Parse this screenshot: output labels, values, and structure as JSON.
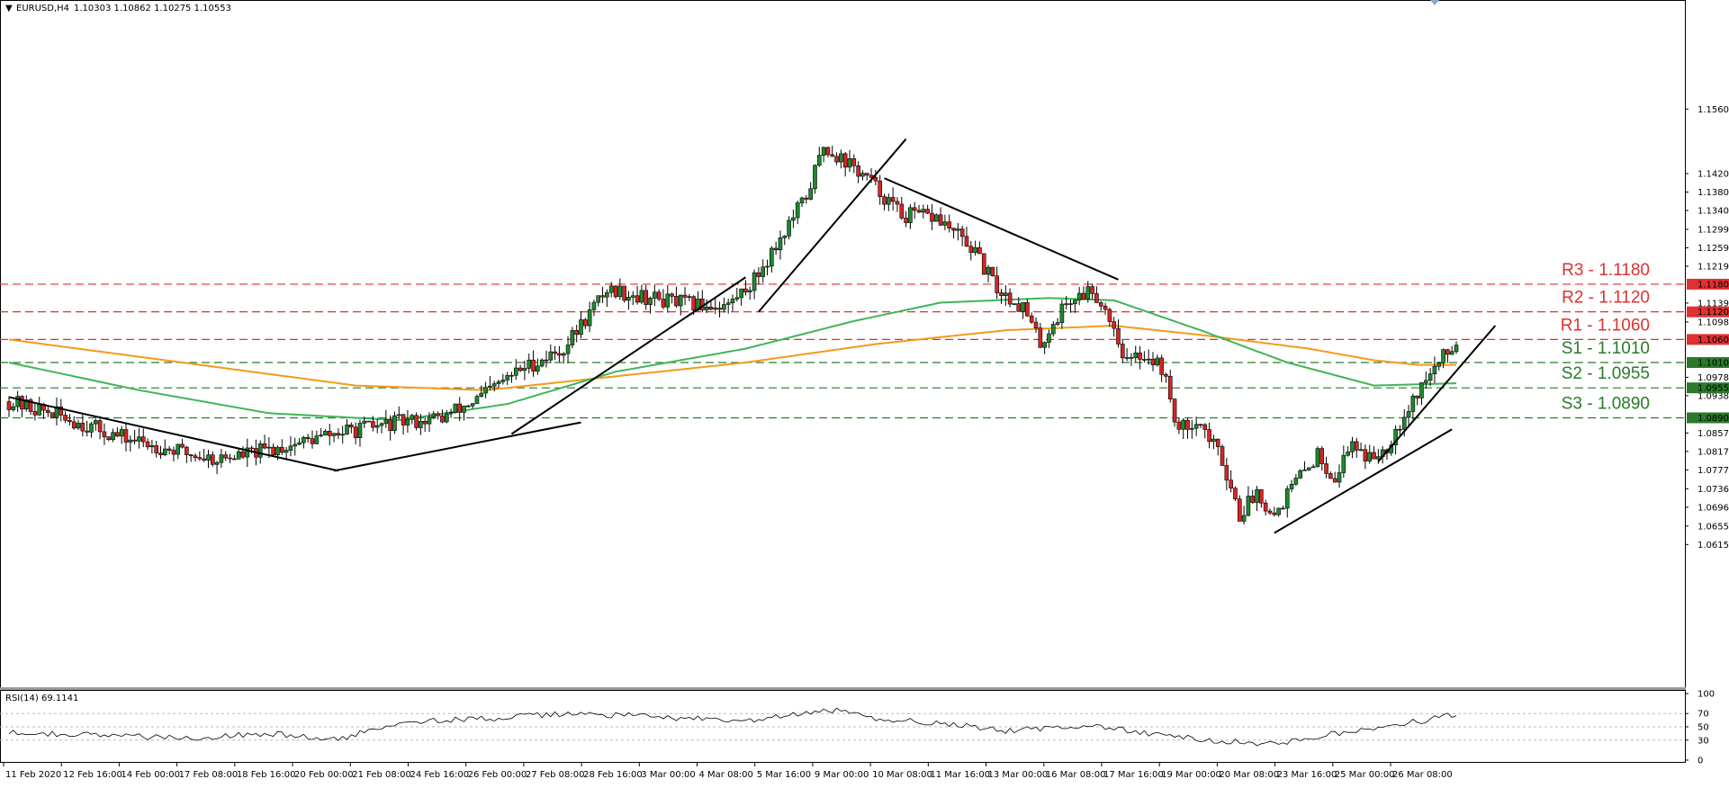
{
  "header": {
    "symbol": "EURUSD,H4",
    "ohlc": "1.10303 1.10862 1.10275 1.10553"
  },
  "colors": {
    "bull": "#1f8a2e",
    "bear": "#d92525",
    "resistance": "#e03030",
    "support": "#2a7a2a",
    "ma_green": "#3fb55a",
    "ma_orange": "#f49a1a",
    "trendline": "#000000",
    "rsi_line": "#000000",
    "grid_dash": "#bbbbbb"
  },
  "chart_data": [
    {
      "type": "candlestick",
      "title": "EURUSD,H4",
      "ylim": [
        1.0595,
        1.1525
      ],
      "y_ticks": [
        "1.15600",
        "1.14200",
        "1.13800",
        "1.13400",
        "1.12990",
        "1.12590",
        "1.12190",
        "1.11390",
        "1.10980",
        "1.09780",
        "1.09380",
        "1.08570",
        "1.08170",
        "1.07770",
        "1.07360",
        "1.06960",
        "1.06550",
        "1.06150"
      ],
      "x_tick_labels": [
        "11 Feb 2020",
        "12 Feb 16:00",
        "14 Feb 00:00",
        "17 Feb 08:00",
        "18 Feb 16:00",
        "20 Feb 00:00",
        "21 Feb 08:00",
        "24 Feb 16:00",
        "26 Feb 00:00",
        "27 Feb 08:00",
        "28 Feb 16:00",
        "3 Mar 00:00",
        "4 Mar 08:00",
        "5 Mar 16:00",
        "9 Mar 00:00",
        "10 Mar 08:00",
        "11 Mar 16:00",
        "13 Mar 00:00",
        "16 Mar 08:00",
        "17 Mar 16:00",
        "19 Mar 00:00",
        "20 Mar 08:00",
        "23 Mar 16:00",
        "25 Mar 00:00",
        "26 Mar 08:00"
      ],
      "levels": [
        {
          "label": "R3 - 1.1180",
          "value": 1.118,
          "tag": "1.11800",
          "kind": "resistance"
        },
        {
          "label": "R2 - 1.1120",
          "value": 1.112,
          "tag": "1.11200",
          "kind": "resistance"
        },
        {
          "label": "R1 - 1.1060",
          "value": 1.106,
          "tag": "1.10600",
          "kind": "resistance"
        },
        {
          "label": "S1 - 1.1010",
          "value": 1.101,
          "tag": "1.10100",
          "kind": "support"
        },
        {
          "label": "S2 - 1.0955",
          "value": 1.0955,
          "tag": "1.09550",
          "kind": "support"
        },
        {
          "label": "S3 - 1.0890",
          "value": 1.089,
          "tag": "1.08900",
          "kind": "support"
        }
      ],
      "waypoints": [
        [
          0,
          1.0925
        ],
        [
          10,
          1.09
        ],
        [
          25,
          1.085
        ],
        [
          40,
          1.0815
        ],
        [
          48,
          1.08
        ],
        [
          60,
          1.082
        ],
        [
          75,
          1.0855
        ],
        [
          90,
          1.088
        ],
        [
          100,
          1.089
        ],
        [
          108,
          1.093
        ],
        [
          118,
          1.0995
        ],
        [
          128,
          1.104
        ],
        [
          138,
          1.117
        ],
        [
          148,
          1.115
        ],
        [
          158,
          1.1135
        ],
        [
          166,
          1.1135
        ],
        [
          172,
          1.119
        ],
        [
          178,
          1.128
        ],
        [
          184,
          1.137
        ],
        [
          188,
          1.148
        ],
        [
          194,
          1.144
        ],
        [
          198,
          1.141
        ],
        [
          206,
          1.133
        ],
        [
          214,
          1.1325
        ],
        [
          222,
          1.126
        ],
        [
          228,
          1.117
        ],
        [
          234,
          1.113
        ],
        [
          238,
          1.105
        ],
        [
          244,
          1.114
        ],
        [
          250,
          1.117
        ],
        [
          254,
          1.111
        ],
        [
          258,
          1.101
        ],
        [
          262,
          1.103
        ],
        [
          266,
          1.1
        ],
        [
          270,
          1.086
        ],
        [
          274,
          1.089
        ],
        [
          280,
          1.08
        ],
        [
          284,
          1.068
        ],
        [
          288,
          1.073
        ],
        [
          292,
          1.068
        ],
        [
          296,
          1.074
        ],
        [
          302,
          1.081
        ],
        [
          306,
          1.076
        ],
        [
          310,
          1.084
        ],
        [
          314,
          1.08
        ],
        [
          318,
          1.083
        ],
        [
          322,
          1.09
        ],
        [
          326,
          1.096
        ],
        [
          330,
          1.101
        ],
        [
          334,
          1.1055
        ]
      ],
      "ma_green": [
        [
          0,
          1.101
        ],
        [
          30,
          1.095
        ],
        [
          60,
          1.09
        ],
        [
          90,
          1.0885
        ],
        [
          115,
          1.092
        ],
        [
          140,
          1.099
        ],
        [
          170,
          1.104
        ],
        [
          195,
          1.11
        ],
        [
          215,
          1.114
        ],
        [
          240,
          1.115
        ],
        [
          255,
          1.1145
        ],
        [
          275,
          1.108
        ],
        [
          295,
          1.101
        ],
        [
          315,
          1.096
        ],
        [
          334,
          1.0965
        ]
      ],
      "ma_orange": [
        [
          0,
          1.106
        ],
        [
          40,
          1.101
        ],
        [
          80,
          1.096
        ],
        [
          110,
          1.095
        ],
        [
          140,
          1.098
        ],
        [
          170,
          1.101
        ],
        [
          200,
          1.105
        ],
        [
          230,
          1.108
        ],
        [
          255,
          1.109
        ],
        [
          275,
          1.107
        ],
        [
          300,
          1.104
        ],
        [
          315,
          1.1015
        ],
        [
          325,
          1.1005
        ],
        [
          334,
          1.1005
        ]
      ],
      "trendlines": [
        [
          [
            0,
            1.0935
          ],
          [
            76,
            1.0775
          ]
        ],
        [
          [
            75,
            1.0775
          ],
          [
            132,
            1.088
          ]
        ],
        [
          [
            116,
            1.0855
          ],
          [
            170,
            1.1195
          ]
        ],
        [
          [
            173,
            1.112
          ],
          [
            207,
            1.1495
          ]
        ],
        [
          [
            202,
            1.141
          ],
          [
            256,
            1.119
          ]
        ],
        [
          [
            292,
            1.064
          ],
          [
            333,
            1.0865
          ]
        ],
        [
          [
            316,
            1.0795
          ],
          [
            343,
            1.109
          ]
        ]
      ]
    },
    {
      "type": "line",
      "title": "RSI(14) 69.1141",
      "ylim": [
        0,
        100
      ],
      "y_ticks": [
        "100",
        "70",
        "50",
        "30",
        "0"
      ],
      "levels": [
        70,
        50,
        30
      ],
      "waypoints": [
        [
          0,
          42
        ],
        [
          20,
          38
        ],
        [
          40,
          33
        ],
        [
          60,
          40
        ],
        [
          76,
          30
        ],
        [
          90,
          58
        ],
        [
          110,
          62
        ],
        [
          130,
          70
        ],
        [
          150,
          65
        ],
        [
          170,
          58
        ],
        [
          190,
          75
        ],
        [
          200,
          62
        ],
        [
          215,
          56
        ],
        [
          230,
          44
        ],
        [
          250,
          52
        ],
        [
          265,
          38
        ],
        [
          280,
          28
        ],
        [
          292,
          25
        ],
        [
          310,
          43
        ],
        [
          325,
          58
        ],
        [
          334,
          69
        ]
      ]
    }
  ]
}
